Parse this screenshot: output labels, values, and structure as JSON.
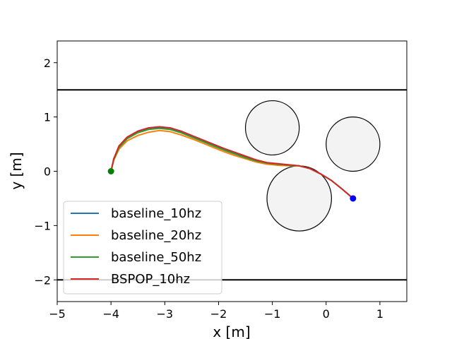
{
  "chart_data": {
    "type": "line",
    "title": "",
    "xlabel": "x [m]",
    "ylabel": "y [m]",
    "xlim": [
      -5,
      1.5
    ],
    "ylim": [
      -2.4,
      2.4
    ],
    "xticks": [
      -5,
      -4,
      -3,
      -2,
      -1,
      0,
      1
    ],
    "yticks": [
      -2,
      -1,
      0,
      1,
      2
    ],
    "xtick_labels": [
      "−5",
      "−4",
      "−3",
      "−2",
      "−1",
      "0",
      "1"
    ],
    "ytick_labels": [
      "−2",
      "−1",
      "0",
      "1",
      "2"
    ],
    "grid": false,
    "legend_position": "lower-left",
    "walls": [
      {
        "name": "upper-wall",
        "y": 1.5
      },
      {
        "name": "lower-wall",
        "y": -2.0
      }
    ],
    "obstacles": [
      {
        "name": "obstacle-1",
        "cx": -1.0,
        "cy": 0.8,
        "r": 0.5
      },
      {
        "name": "obstacle-2",
        "cx": 0.5,
        "cy": 0.5,
        "r": 0.5
      },
      {
        "name": "obstacle-3",
        "cx": -0.5,
        "cy": -0.5,
        "r": 0.6
      }
    ],
    "start_point": {
      "x": -4.0,
      "y": 0.0,
      "color": "#008000"
    },
    "goal_point": {
      "x": 0.5,
      "y": -0.5,
      "color": "#0000ff"
    },
    "series": [
      {
        "name": "baseline_10hz",
        "color": "#1f77b4",
        "x": [
          -4.0,
          -3.95,
          -3.85,
          -3.7,
          -3.5,
          -3.3,
          -3.1,
          -2.9,
          -2.7,
          -2.5,
          -2.3,
          -2.1,
          -1.9,
          -1.7,
          -1.5,
          -1.3,
          -1.1,
          -0.9,
          -0.7,
          -0.5,
          -0.3,
          -0.1,
          0.1,
          0.3,
          0.5
        ],
        "y": [
          0.0,
          0.22,
          0.45,
          0.61,
          0.72,
          0.78,
          0.8,
          0.78,
          0.72,
          0.64,
          0.56,
          0.48,
          0.4,
          0.33,
          0.26,
          0.2,
          0.15,
          0.13,
          0.11,
          0.1,
          0.05,
          -0.05,
          -0.17,
          -0.33,
          -0.5
        ]
      },
      {
        "name": "baseline_20hz",
        "color": "#ff7f0e",
        "x": [
          -4.0,
          -3.95,
          -3.85,
          -3.7,
          -3.5,
          -3.3,
          -3.1,
          -2.9,
          -2.7,
          -2.5,
          -2.3,
          -2.1,
          -1.9,
          -1.7,
          -1.5,
          -1.3,
          -1.1,
          -0.9,
          -0.7,
          -0.5,
          -0.3,
          -0.1,
          0.1,
          0.3,
          0.5
        ],
        "y": [
          0.0,
          0.2,
          0.41,
          0.56,
          0.66,
          0.72,
          0.75,
          0.73,
          0.67,
          0.6,
          0.52,
          0.44,
          0.36,
          0.29,
          0.23,
          0.17,
          0.13,
          0.11,
          0.1,
          0.1,
          0.05,
          -0.05,
          -0.17,
          -0.33,
          -0.5
        ]
      },
      {
        "name": "baseline_50hz",
        "color": "#2ca02c",
        "x": [
          -4.0,
          -3.95,
          -3.85,
          -3.7,
          -3.5,
          -3.3,
          -3.1,
          -2.9,
          -2.7,
          -2.5,
          -2.3,
          -2.1,
          -1.9,
          -1.7,
          -1.5,
          -1.3,
          -1.1,
          -0.9,
          -0.7,
          -0.5,
          -0.3,
          -0.1,
          0.1,
          0.3,
          0.5
        ],
        "y": [
          0.0,
          0.21,
          0.44,
          0.6,
          0.71,
          0.77,
          0.79,
          0.77,
          0.71,
          0.63,
          0.55,
          0.47,
          0.39,
          0.32,
          0.25,
          0.19,
          0.15,
          0.13,
          0.11,
          0.1,
          0.05,
          -0.05,
          -0.17,
          -0.33,
          -0.5
        ]
      },
      {
        "name": "BSPOP_10hz",
        "color": "#d62728",
        "x": [
          -4.0,
          -3.95,
          -3.85,
          -3.7,
          -3.5,
          -3.3,
          -3.1,
          -2.9,
          -2.7,
          -2.5,
          -2.3,
          -2.1,
          -1.9,
          -1.7,
          -1.5,
          -1.3,
          -1.1,
          -0.9,
          -0.7,
          -0.5,
          -0.3,
          -0.1,
          0.1,
          0.3,
          0.5
        ],
        "y": [
          0.0,
          0.23,
          0.47,
          0.63,
          0.74,
          0.8,
          0.82,
          0.8,
          0.74,
          0.66,
          0.58,
          0.5,
          0.42,
          0.35,
          0.28,
          0.21,
          0.16,
          0.14,
          0.12,
          0.1,
          0.05,
          -0.05,
          -0.17,
          -0.33,
          -0.5
        ]
      }
    ]
  }
}
